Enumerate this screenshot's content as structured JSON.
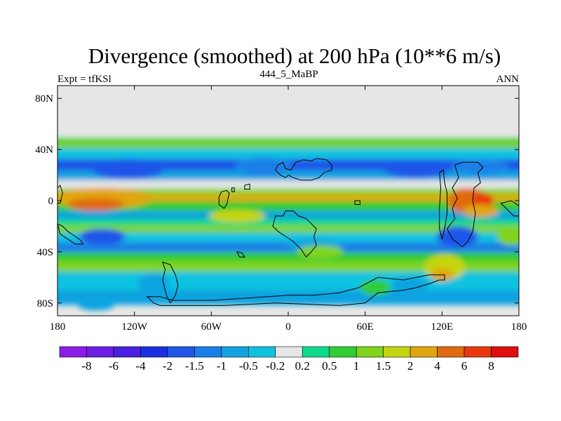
{
  "chart_data": {
    "type": "heatmap",
    "title": "Divergence (smoothed) at 200 hPa (10**6 m/s)",
    "subtitle_left": "Expt = tfKSl",
    "subtitle_center": "444_5_MaBP",
    "subtitle_right": "ANN",
    "xlim": [
      -180,
      180
    ],
    "ylim": [
      -90,
      90
    ],
    "x_ticks": [
      {
        "value": -180,
        "label": "180"
      },
      {
        "value": -120,
        "label": "120W"
      },
      {
        "value": -60,
        "label": "60W"
      },
      {
        "value": 0,
        "label": "0"
      },
      {
        "value": 60,
        "label": "60E"
      },
      {
        "value": 120,
        "label": "120E"
      },
      {
        "value": 180,
        "label": "180"
      }
    ],
    "y_ticks": [
      {
        "value": 80,
        "label": "80N"
      },
      {
        "value": 40,
        "label": "40N"
      },
      {
        "value": 0,
        "label": "0"
      },
      {
        "value": -40,
        "label": "40S"
      },
      {
        "value": -80,
        "label": "80S"
      }
    ],
    "colorbar": {
      "labels": [
        "-8",
        "-6",
        "-4",
        "-2",
        "-1.5",
        "-1",
        "-0.5",
        "-0.2",
        "0.2",
        "0.5",
        "1",
        "1.5",
        "2",
        "4",
        "6",
        "8"
      ],
      "colors": [
        "#8c1de8",
        "#6e1ee6",
        "#4a1fdf",
        "#1a2fe0",
        "#1f55e8",
        "#1a7fe8",
        "#11a3e0",
        "#0fc3e0",
        "#e6e6e6",
        "#11d98a",
        "#33cc33",
        "#80d41c",
        "#c4d40f",
        "#e0a60f",
        "#e06b0f",
        "#e8380f",
        "#e00f0f"
      ]
    },
    "field_bands": [
      {
        "lat": 47,
        "level": 0.5
      },
      {
        "lat": 44,
        "level": 1
      },
      {
        "lat": 38,
        "level": -0.5
      },
      {
        "lat": 27,
        "level": -2
      },
      {
        "lat": 20,
        "level": -1
      },
      {
        "lat": 12,
        "level": -0.2
      },
      {
        "lat": 7,
        "level": 1
      },
      {
        "lat": 3,
        "level": 2
      },
      {
        "lat": -4,
        "level": 0.5
      },
      {
        "lat": -12,
        "level": -1
      },
      {
        "lat": -17,
        "level": 0.2
      },
      {
        "lat": -22,
        "level": 1
      },
      {
        "lat": -28,
        "level": -0.5
      },
      {
        "lat": -37,
        "level": -1.5
      },
      {
        "lat": -44,
        "level": 0.5
      },
      {
        "lat": -51,
        "level": 1
      },
      {
        "lat": -60,
        "level": -0.5
      },
      {
        "lat": -80,
        "level": -1
      }
    ],
    "field_blobs": [
      {
        "lon": -125,
        "lat": 25,
        "dlon": 28,
        "dlat": 8,
        "level": -2
      },
      {
        "lon": -145,
        "lat": 2,
        "dlon": 40,
        "dlat": 8,
        "level": 2
      },
      {
        "lon": -150,
        "lat": -3,
        "dlon": 22,
        "dlat": 5,
        "level": 4
      },
      {
        "lon": -145,
        "lat": -28,
        "dlon": 18,
        "dlat": 6,
        "level": -2
      },
      {
        "lon": -20,
        "lat": 27,
        "dlon": 22,
        "dlat": 7,
        "level": -1.5
      },
      {
        "lon": -40,
        "lat": -12,
        "dlon": 22,
        "dlat": 5,
        "level": 1.5
      },
      {
        "lon": 20,
        "lat": -35,
        "dlon": 20,
        "dlat": 5,
        "level": -1
      },
      {
        "lon": 25,
        "lat": -40,
        "dlon": 18,
        "dlat": 5,
        "level": 1
      },
      {
        "lon": 100,
        "lat": 25,
        "dlon": 26,
        "dlat": 7,
        "level": -2
      },
      {
        "lon": 150,
        "lat": 27,
        "dlon": 22,
        "dlat": 6,
        "level": -1.5
      },
      {
        "lon": 140,
        "lat": 0,
        "dlon": 16,
        "dlat": 10,
        "level": 4
      },
      {
        "lon": 152,
        "lat": 0,
        "dlon": 8,
        "dlat": 6,
        "level": 6
      },
      {
        "lon": 150,
        "lat": -8,
        "dlon": 14,
        "dlat": 5,
        "level": 2
      },
      {
        "lon": 132,
        "lat": -28,
        "dlon": 16,
        "dlat": 8,
        "level": -2
      },
      {
        "lon": 122,
        "lat": -52,
        "dlon": 16,
        "dlat": 10,
        "level": 1.5
      },
      {
        "lon": 120,
        "lat": -58,
        "dlon": 9,
        "dlat": 5,
        "level": 2
      },
      {
        "lon": 95,
        "lat": -66,
        "dlon": 14,
        "dlat": 6,
        "level": -1
      },
      {
        "lon": 68,
        "lat": -68,
        "dlon": 12,
        "dlat": 6,
        "level": 0.5
      },
      {
        "lon": -105,
        "lat": -65,
        "dlon": 12,
        "dlat": 8,
        "level": -1
      },
      {
        "lon": -150,
        "lat": -82,
        "dlon": 14,
        "dlat": 4,
        "level": -1
      },
      {
        "lon": 175,
        "lat": -28,
        "dlon": 12,
        "dlat": 7,
        "level": 1
      }
    ],
    "continent_outlines": [
      {
        "name": "north-america",
        "points": [
          [
            -8,
            28
          ],
          [
            -4,
            30
          ],
          [
            -2,
            25
          ],
          [
            2,
            24
          ],
          [
            6,
            30
          ],
          [
            12,
            32
          ],
          [
            18,
            31
          ],
          [
            22,
            33
          ],
          [
            30,
            32
          ],
          [
            34,
            28
          ],
          [
            34,
            24
          ],
          [
            28,
            22
          ],
          [
            24,
            18
          ],
          [
            18,
            16
          ],
          [
            10,
            16
          ],
          [
            4,
            18
          ],
          [
            0,
            20
          ],
          [
            -2,
            18
          ],
          [
            -6,
            20
          ],
          [
            -10,
            24
          ]
        ]
      },
      {
        "name": "central-island",
        "points": [
          [
            -52,
            7
          ],
          [
            -48,
            8
          ],
          [
            -46,
            6
          ],
          [
            -48,
            -3
          ],
          [
            -50,
            -6
          ],
          [
            -54,
            -3
          ],
          [
            -54,
            3
          ]
        ]
      },
      {
        "name": "eurasia",
        "points": [
          [
            -10,
            -12
          ],
          [
            -4,
            -12
          ],
          [
            -2,
            -8
          ],
          [
            4,
            -8
          ],
          [
            8,
            -12
          ],
          [
            14,
            -14
          ],
          [
            18,
            -18
          ],
          [
            22,
            -22
          ],
          [
            20,
            -28
          ],
          [
            22,
            -35
          ],
          [
            18,
            -40
          ],
          [
            14,
            -44
          ],
          [
            10,
            -38
          ],
          [
            4,
            -32
          ],
          [
            -2,
            -28
          ],
          [
            -8,
            -24
          ],
          [
            -12,
            -20
          ]
        ]
      },
      {
        "name": "small-north",
        "points": [
          [
            -34,
            12
          ],
          [
            -30,
            13
          ],
          [
            -30,
            9
          ],
          [
            -34,
            9
          ]
        ]
      },
      {
        "name": "small-2",
        "points": [
          [
            -44,
            10
          ],
          [
            -42,
            10
          ],
          [
            -42,
            7
          ],
          [
            -44,
            7
          ]
        ]
      },
      {
        "name": "small-3",
        "points": [
          [
            52,
            0
          ],
          [
            56,
            0
          ],
          [
            56,
            -3
          ],
          [
            52,
            -3
          ]
        ]
      },
      {
        "name": "india-land",
        "points": [
          [
            118,
            22
          ],
          [
            121,
            24
          ],
          [
            122,
            14
          ],
          [
            124,
            6
          ],
          [
            124,
            -10
          ],
          [
            122,
            -22
          ],
          [
            120,
            -30
          ],
          [
            118,
            -22
          ],
          [
            118,
            -6
          ],
          [
            119,
            10
          ]
        ]
      },
      {
        "name": "australasia",
        "points": [
          [
            130,
            28
          ],
          [
            136,
            30
          ],
          [
            148,
            30
          ],
          [
            152,
            26
          ],
          [
            148,
            22
          ],
          [
            150,
            14
          ],
          [
            145,
            10
          ],
          [
            144,
            0
          ],
          [
            146,
            -10
          ],
          [
            144,
            -24
          ],
          [
            140,
            -32
          ],
          [
            136,
            -36
          ],
          [
            128,
            -30
          ],
          [
            124,
            -22
          ],
          [
            130,
            -14
          ],
          [
            128,
            -6
          ],
          [
            132,
            2
          ],
          [
            128,
            10
          ],
          [
            133,
            18
          ]
        ]
      },
      {
        "name": "antarctic-rim",
        "points": [
          [
            -110,
            -75
          ],
          [
            -105,
            -80
          ],
          [
            -100,
            -82
          ],
          [
            -50,
            -82
          ],
          [
            -10,
            -80
          ],
          [
            40,
            -82
          ],
          [
            60,
            -80
          ],
          [
            70,
            -72
          ],
          [
            90,
            -70
          ],
          [
            100,
            -68
          ],
          [
            110,
            -65
          ],
          [
            118,
            -62
          ],
          [
            122,
            -62
          ],
          [
            122,
            -58
          ],
          [
            110,
            -58
          ],
          [
            100,
            -60
          ],
          [
            90,
            -62
          ],
          [
            70,
            -60
          ],
          [
            55,
            -68
          ],
          [
            40,
            -72
          ],
          [
            20,
            -74
          ],
          [
            0,
            -74
          ],
          [
            -30,
            -76
          ],
          [
            -60,
            -78
          ],
          [
            -90,
            -78
          ],
          [
            -100,
            -75
          ]
        ]
      },
      {
        "name": "southern-stub",
        "points": [
          [
            -98,
            -48
          ],
          [
            -92,
            -50
          ],
          [
            -88,
            -58
          ],
          [
            -86,
            -66
          ],
          [
            -88,
            -74
          ],
          [
            -92,
            -80
          ],
          [
            -95,
            -74
          ],
          [
            -98,
            -62
          ],
          [
            -96,
            -54
          ]
        ]
      },
      {
        "name": "southwest-edge",
        "points": [
          [
            -180,
            -18
          ],
          [
            -176,
            -20
          ],
          [
            -172,
            -24
          ],
          [
            -166,
            -28
          ],
          [
            -162,
            -31
          ],
          [
            -160,
            -34
          ],
          [
            -166,
            -34
          ],
          [
            -172,
            -30
          ],
          [
            -178,
            -26
          ]
        ]
      },
      {
        "name": "far-west",
        "points": [
          [
            -180,
            10
          ],
          [
            -178,
            12
          ],
          [
            -176,
            6
          ],
          [
            -178,
            -2
          ],
          [
            -180,
            -2
          ]
        ]
      },
      {
        "name": "south-blob",
        "points": [
          [
            -40,
            -40
          ],
          [
            -36,
            -41
          ],
          [
            -34,
            -44
          ],
          [
            -38,
            -44
          ]
        ]
      },
      {
        "name": "east-edge",
        "points": [
          [
            166,
            -2
          ],
          [
            170,
            -6
          ],
          [
            176,
            -12
          ],
          [
            180,
            -12
          ],
          [
            180,
            -4
          ],
          [
            174,
            0
          ]
        ]
      }
    ]
  }
}
